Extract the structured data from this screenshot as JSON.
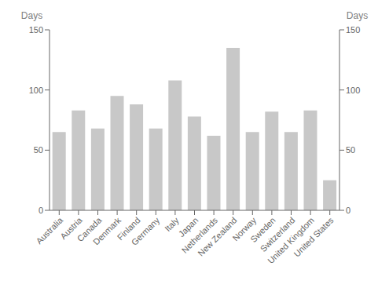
{
  "chart_data": {
    "type": "bar",
    "categories": [
      "Australia",
      "Austria",
      "Canada",
      "Denmark",
      "Finland",
      "Germany",
      "Italy",
      "Japan",
      "Netherlands",
      "New Zealand",
      "Norway",
      "Sweden",
      "Switzerland",
      "United Kingdom",
      "United States"
    ],
    "values": [
      65,
      83,
      68,
      95,
      88,
      68,
      108,
      78,
      62,
      135,
      65,
      82,
      65,
      83,
      25
    ],
    "color": "#c8c8c8",
    "ylabel": "Days",
    "ylim": [
      0,
      150
    ],
    "yticks": [
      0,
      50,
      100,
      150
    ],
    "y2label": "Days",
    "y2lim": [
      0,
      150
    ],
    "y2ticks": [
      0,
      50,
      100,
      150
    ],
    "grid": false
  }
}
